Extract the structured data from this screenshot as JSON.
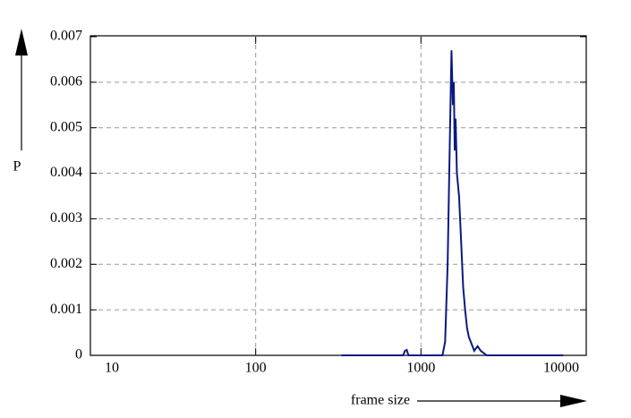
{
  "chart_data": {
    "type": "line",
    "x_label": "frame size",
    "y_label": "P",
    "x_scale": "log",
    "grid": true,
    "xlim": [
      10,
      10000
    ],
    "xticks": [
      10,
      100,
      1000,
      10000
    ],
    "ylim": [
      0,
      0.007
    ],
    "yticks": [
      0,
      0.001,
      0.002,
      0.003,
      0.004,
      0.005,
      0.006,
      0.007
    ],
    "x": [
      330,
      500,
      700,
      780,
      800,
      820,
      840,
      900,
      1000,
      1200,
      1350,
      1400,
      1450,
      1500,
      1530,
      1560,
      1580,
      1600,
      1620,
      1650,
      1700,
      1750,
      1800,
      1850,
      1900,
      1950,
      2000,
      2050,
      2100,
      2200,
      2300,
      2500,
      3000,
      5000,
      7250
    ],
    "series": [
      {
        "color": "#0a1a80",
        "values": [
          0,
          0,
          0,
          0,
          0.0001,
          0.00012,
          0,
          0,
          0,
          0,
          0,
          0.0003,
          0.002,
          0.005,
          0.0067,
          0.0055,
          0.006,
          0.0045,
          0.0052,
          0.004,
          0.0035,
          0.0025,
          0.0015,
          0.001,
          0.0006,
          0.0004,
          0.0003,
          0.0002,
          0.0001,
          0.0002,
          0.0001,
          0,
          0,
          0,
          0
        ]
      }
    ]
  }
}
